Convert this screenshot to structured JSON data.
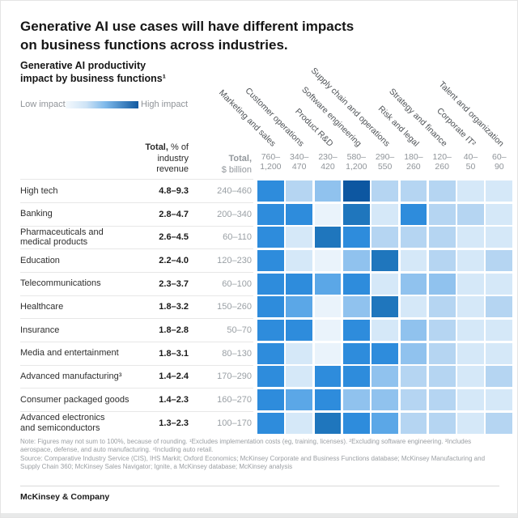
{
  "header": {
    "title_line1": "Generative AI use cases will have different impacts",
    "title_line2": "on business functions across industries.",
    "subtitle_line1": "Generative AI productivity",
    "subtitle_line2": "impact by business functions¹"
  },
  "legend": {
    "low_label": "Low impact",
    "high_label": "High impact",
    "gradient_start": "#f4f9fd",
    "gradient_mid": "#7db8ea",
    "gradient_end": "#1059a0"
  },
  "table_headers": {
    "pct_bold": "Total,",
    "pct_line1_rest": " % of",
    "pct_line2": "industry",
    "pct_line3": "revenue",
    "usd_bold": "Total,",
    "usd_line2": "$ billion"
  },
  "chart_data": {
    "type": "heatmap",
    "title": "Generative AI productivity impact by business functions¹",
    "value_scale": "relative impact intensity, 0 = low impact, 7 = high impact",
    "palette": [
      "#eaf3fb",
      "#d5e8f8",
      "#b5d5f2",
      "#90c2ee",
      "#5ba7e7",
      "#2e8cdc",
      "#1f76bd",
      "#0d57a1"
    ],
    "columns": [
      {
        "label": "Marketing and sales",
        "total_lines": [
          "760–",
          "1,200"
        ]
      },
      {
        "label": "Customer operations",
        "total_lines": [
          "340–",
          "470"
        ]
      },
      {
        "label": "Product R&D",
        "total_lines": [
          "230–",
          "420"
        ]
      },
      {
        "label": "Software engineering",
        "total_lines": [
          "580–",
          "1,200"
        ]
      },
      {
        "label": "Supply chain and operations",
        "total_lines": [
          "290–",
          "550"
        ]
      },
      {
        "label": "Risk and legal",
        "total_lines": [
          "180–",
          "260"
        ]
      },
      {
        "label": "Strategy and finance",
        "total_lines": [
          "120–",
          "260"
        ]
      },
      {
        "label": "Corporate IT²",
        "total_lines": [
          "40–",
          "50"
        ]
      },
      {
        "label": "Talent and organization",
        "total_lines": [
          "60–",
          "90"
        ]
      }
    ],
    "rows": [
      {
        "label_lines": [
          "High tech"
        ],
        "pct": "4.8–9.3",
        "usd": "240–460",
        "cells": [
          5,
          2,
          3,
          7,
          2,
          2,
          2,
          1,
          1
        ]
      },
      {
        "label_lines": [
          "Banking"
        ],
        "pct": "2.8–4.7",
        "usd": "200–340",
        "cells": [
          5,
          5,
          0,
          6,
          1,
          5,
          2,
          2,
          1
        ]
      },
      {
        "label_lines": [
          "Pharmaceuticals and",
          "medical products"
        ],
        "pct": "2.6–4.5",
        "usd": "60–110",
        "cells": [
          5,
          1,
          6,
          5,
          2,
          2,
          2,
          1,
          1
        ]
      },
      {
        "label_lines": [
          "Education"
        ],
        "pct": "2.2–4.0",
        "usd": "120–230",
        "cells": [
          5,
          1,
          0,
          3,
          6,
          1,
          2,
          1,
          2
        ]
      },
      {
        "label_lines": [
          "Telecommunications"
        ],
        "pct": "2.3–3.7",
        "usd": "60–100",
        "cells": [
          5,
          5,
          4,
          5,
          1,
          3,
          3,
          1,
          1
        ]
      },
      {
        "label_lines": [
          "Healthcare"
        ],
        "pct": "1.8–3.2",
        "usd": "150–260",
        "cells": [
          5,
          4,
          0,
          3,
          6,
          1,
          2,
          1,
          2
        ]
      },
      {
        "label_lines": [
          "Insurance"
        ],
        "pct": "1.8–2.8",
        "usd": "50–70",
        "cells": [
          5,
          5,
          0,
          5,
          1,
          3,
          2,
          1,
          1
        ]
      },
      {
        "label_lines": [
          "Media and entertainment"
        ],
        "pct": "1.8–3.1",
        "usd": "80–130",
        "cells": [
          5,
          1,
          0,
          5,
          5,
          3,
          2,
          1,
          1
        ]
      },
      {
        "label_lines": [
          "Advanced manufacturing³"
        ],
        "pct": "1.4–2.4",
        "usd": "170–290",
        "cells": [
          5,
          1,
          5,
          5,
          3,
          2,
          2,
          1,
          2
        ]
      },
      {
        "label_lines": [
          "Consumer packaged goods"
        ],
        "pct": "1.4–2.3",
        "usd": "160–270",
        "cells": [
          5,
          4,
          5,
          3,
          3,
          2,
          2,
          1,
          1
        ]
      },
      {
        "label_lines": [
          "Advanced electronics",
          "and semiconductors"
        ],
        "pct": "1.3–2.3",
        "usd": "100–170",
        "cells": [
          5,
          1,
          6,
          5,
          4,
          2,
          2,
          1,
          2
        ]
      }
    ]
  },
  "footnotes": {
    "note": "Note: Figures may not sum to 100%, because of rounding. ¹Excludes implementation costs (eg, training, licenses). ²Excluding software engineering. ³Includes aerospace, defense, and auto manufacturing. ⁴Including auto retail.",
    "source": "Source: Comparative Industry Service (CIS), IHS Markit; Oxford Economics; McKinsey Corporate and Business Functions database; McKinsey Manufacturing and Supply Chain 360; McKinsey Sales Navigator; Ignite, a McKinsey database; McKinsey analysis"
  },
  "brand": "McKinsey & Company"
}
